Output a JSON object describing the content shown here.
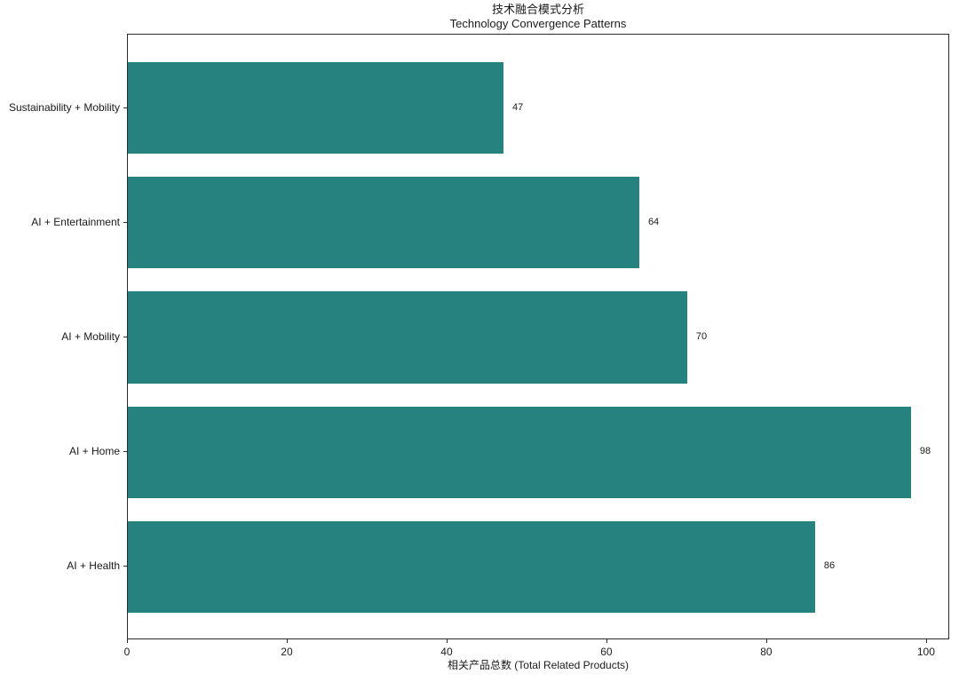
{
  "chart_data": {
    "type": "bar",
    "orientation": "horizontal",
    "title": "技术融合模式分析",
    "subtitle": "Technology Convergence Patterns",
    "xlabel": "相关产品总数 (Total Related Products)",
    "categories": [
      "Sustainability + Mobility",
      "AI + Entertainment",
      "AI + Mobility",
      "AI + Home",
      "AI + Health"
    ],
    "values": [
      47,
      64,
      70,
      98,
      86
    ],
    "value_labels": [
      "47",
      "64",
      "70",
      "98",
      "86"
    ],
    "xtick_labels": [
      "0",
      "20",
      "40",
      "60",
      "80",
      "100"
    ],
    "xtick_values": [
      0,
      20,
      40,
      60,
      80,
      100
    ],
    "xlim": [
      0,
      102.9
    ],
    "bar_color": "#26827F",
    "axis_color": "#2b2b2b",
    "background_color": "#ffffff",
    "grid": false,
    "legend": null
  }
}
